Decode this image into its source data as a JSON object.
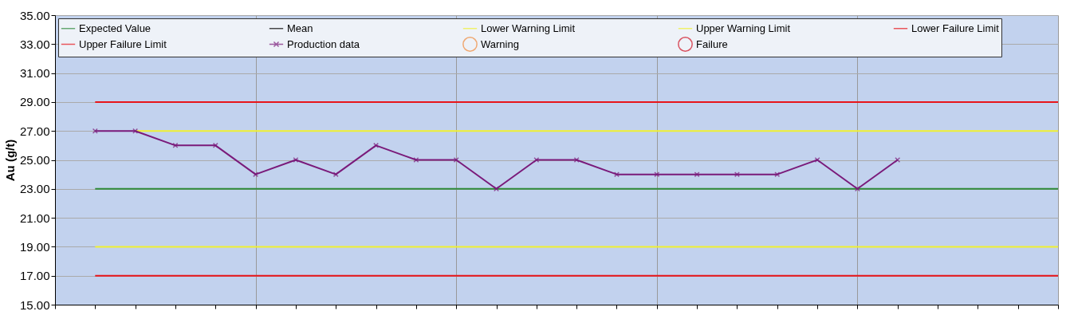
{
  "chart_data": {
    "type": "line",
    "ylabel": "Au (g/t)",
    "categories": [
      null,
      null,
      null,
      null,
      null,
      null,
      null,
      null,
      null,
      null,
      null,
      null,
      null,
      null,
      null,
      null,
      null,
      null,
      null,
      null,
      null,
      null,
      null,
      null,
      null,
      null
    ],
    "series": [
      {
        "name": "Expected Value",
        "color": "#2e8b3a",
        "values": [
          null,
          23,
          23,
          23,
          23,
          23,
          23,
          23,
          23,
          23,
          23,
          23,
          23,
          23,
          23,
          23,
          23,
          23,
          23,
          23,
          23,
          23,
          23,
          23,
          23,
          23
        ]
      },
      {
        "name": "Mean",
        "color": "#000000",
        "values": [
          null,
          null,
          null,
          null,
          null,
          null,
          null,
          null,
          null,
          null,
          null,
          null,
          null,
          null,
          null,
          null,
          null,
          null,
          null,
          null,
          null,
          null,
          null,
          null,
          null,
          null
        ]
      },
      {
        "name": "Lower Warning Limit",
        "color": "#f0f030",
        "values": [
          null,
          19,
          19,
          19,
          19,
          19,
          19,
          19,
          19,
          19,
          19,
          19,
          19,
          19,
          19,
          19,
          19,
          19,
          19,
          19,
          19,
          19,
          19,
          19,
          19,
          19
        ]
      },
      {
        "name": "Upper Warning Limit",
        "color": "#f0f030",
        "values": [
          null,
          null,
          27,
          27,
          27,
          27,
          27,
          27,
          27,
          27,
          27,
          27,
          27,
          27,
          27,
          27,
          27,
          27,
          27,
          27,
          27,
          27,
          27,
          27,
          27,
          27
        ]
      },
      {
        "name": "Lower Failure Limit",
        "color": "#e8151a",
        "values": [
          null,
          17,
          17,
          17,
          17,
          17,
          17,
          17,
          17,
          17,
          17,
          17,
          17,
          17,
          17,
          17,
          17,
          17,
          17,
          17,
          17,
          17,
          17,
          17,
          17,
          17
        ]
      },
      {
        "name": "Upper Failure Limit",
        "color": "#e8151a",
        "values": [
          null,
          29,
          29,
          29,
          29,
          29,
          29,
          29,
          29,
          29,
          29,
          29,
          29,
          29,
          29,
          29,
          29,
          29,
          29,
          29,
          29,
          29,
          29,
          29,
          29,
          29
        ]
      },
      {
        "name": "Production data",
        "color": "#7a1a7a",
        "marker": "cross",
        "values": [
          null,
          27,
          27,
          26,
          26,
          24,
          25,
          24,
          26,
          25,
          25,
          23,
          25,
          25,
          24,
          24,
          24,
          24,
          24,
          25,
          23,
          25,
          null,
          null,
          null,
          null
        ]
      },
      {
        "name": "Warning",
        "type": "scatter",
        "color": "#f08a3a",
        "marker": "circle",
        "values": [
          null,
          null,
          null,
          null,
          null,
          null,
          null,
          null,
          null,
          null,
          null,
          null,
          null,
          null,
          null,
          null,
          null,
          null,
          null,
          null,
          null,
          null,
          null,
          null,
          null,
          null
        ]
      },
      {
        "name": "Failure",
        "type": "scatter",
        "color": "#d01020",
        "marker": "circle",
        "values": [
          null,
          null,
          null,
          null,
          null,
          null,
          null,
          null,
          null,
          null,
          null,
          null,
          null,
          null,
          null,
          null,
          null,
          null,
          null,
          null,
          null,
          null,
          null,
          null,
          null,
          null
        ]
      }
    ],
    "ylim": [
      15,
      35
    ],
    "yticks": [
      {
        "value": 15,
        "label": "15.00"
      },
      {
        "value": 17,
        "label": "17.00"
      },
      {
        "value": 19,
        "label": "19.00"
      },
      {
        "value": 21,
        "label": "21.00"
      },
      {
        "value": 23,
        "label": "23.00"
      },
      {
        "value": 25,
        "label": "25.00"
      },
      {
        "value": 27,
        "label": "27.00"
      },
      {
        "value": 29,
        "label": "29.00"
      },
      {
        "value": 31,
        "label": "31.00"
      },
      {
        "value": 33,
        "label": "33.00"
      },
      {
        "value": 35,
        "label": "35.00"
      }
    ],
    "grid": true,
    "legend": "top",
    "line_style": "solid"
  }
}
